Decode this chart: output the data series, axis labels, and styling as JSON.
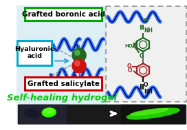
{
  "fig_width": 2.72,
  "fig_height": 1.89,
  "dpi": 100,
  "bg_color": "#ffffff",
  "title_boronic": "Grafted boronic acid",
  "title_hyaluronic": "Hyaluronic\nacid",
  "title_salicylate": "Grafted salicylate",
  "title_selfhealing": "Self-healing hydrogel",
  "box_boronic_color": "#00aa00",
  "box_hyaluronic_color": "#00aacc",
  "box_salicylate_color": "#cc0000",
  "selfhealing_color": "#00cc00",
  "wave_color_dark": "#000066",
  "wave_color_fill": "#3377ff",
  "green_sphere_color": "#226622",
  "red_sphere_color": "#cc1111",
  "dashed_box_color": "#999999",
  "molecule_green": "#226622",
  "molecule_red": "#aa2222",
  "molecule_black": "#111111",
  "left_bg": "#ddeef5",
  "right_bg": "#f0f0f0"
}
